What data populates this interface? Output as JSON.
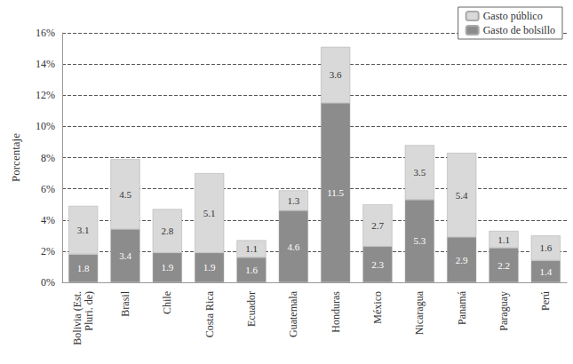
{
  "chart_data": {
    "type": "bar",
    "y_label": "Porcentaje",
    "categories": [
      "Bolivia (Est.\nPluri. de)",
      "Brasil",
      "Chile",
      "Costa Rica",
      "Ecuador",
      "Guatemala",
      "Honduras",
      "México",
      "Nicaragua",
      "Panamá",
      "Paraguay",
      "Perú"
    ],
    "series": [
      {
        "name": "Gasto de bolsillo",
        "color": "#8c8c8c",
        "values": [
          1.8,
          3.4,
          1.9,
          1.9,
          1.6,
          4.6,
          11.5,
          2.3,
          5.3,
          2.9,
          2.2,
          1.4
        ]
      },
      {
        "name": "Gasto público",
        "color": "#d9d9d9",
        "values": [
          3.1,
          4.5,
          2.8,
          5.1,
          1.1,
          1.3,
          3.6,
          2.7,
          3.5,
          5.4,
          1.1,
          1.6
        ]
      }
    ],
    "stacked": true,
    "data_labels": true,
    "grid": true,
    "legend": "top-right",
    "ylim": [
      0,
      16
    ],
    "yticks": [
      {
        "value": 0,
        "label": "0%"
      },
      {
        "value": 2,
        "label": "2%"
      },
      {
        "value": 4,
        "label": "4%"
      },
      {
        "value": 6,
        "label": "6%"
      },
      {
        "value": 8,
        "label": "8%"
      },
      {
        "value": 10,
        "label": "10%"
      },
      {
        "value": 12,
        "label": "12%"
      },
      {
        "value": 14,
        "label": "14%"
      },
      {
        "value": 16,
        "label": "16%"
      }
    ]
  }
}
